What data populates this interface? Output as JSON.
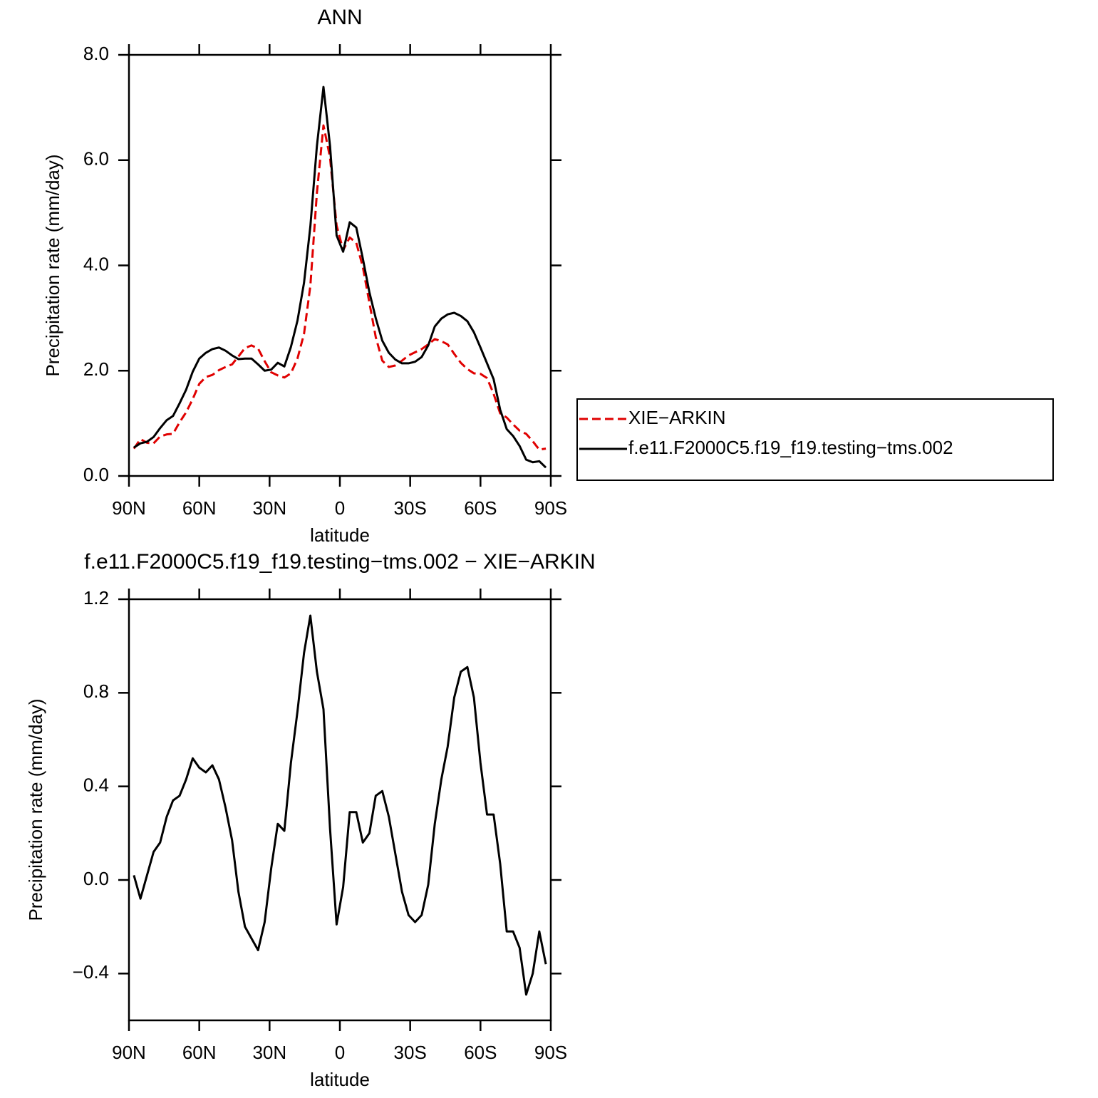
{
  "chart_data": [
    {
      "type": "line",
      "title": "ANN",
      "xlabel": "latitude",
      "ylabel": "Precipitation rate (mm/day)",
      "x": [
        87.9,
        85.1,
        82.3,
        79.5,
        76.7,
        73.9,
        71.2,
        68.4,
        65.6,
        62.8,
        60.0,
        57.2,
        54.4,
        51.6,
        48.8,
        46.0,
        43.3,
        40.5,
        37.7,
        34.9,
        32.1,
        29.3,
        26.5,
        23.7,
        20.9,
        18.1,
        15.3,
        12.6,
        9.8,
        7.0,
        4.2,
        1.4,
        -1.4,
        -4.2,
        -7.0,
        -9.8,
        -12.6,
        -15.3,
        -18.1,
        -20.9,
        -23.7,
        -26.5,
        -29.3,
        -32.1,
        -34.9,
        -37.7,
        -40.5,
        -43.3,
        -46.0,
        -48.8,
        -51.6,
        -54.4,
        -57.2,
        -60.0,
        -62.8,
        -65.6,
        -68.4,
        -71.2,
        -73.9,
        -76.7,
        -79.5,
        -82.3,
        -85.1,
        -87.9
      ],
      "xlim": [
        90,
        -90
      ],
      "xticks": [
        {
          "value": 90,
          "label": "90N"
        },
        {
          "value": 60,
          "label": "60N"
        },
        {
          "value": 30,
          "label": "30N"
        },
        0,
        {
          "value": -30,
          "label": "30S"
        },
        {
          "value": -60,
          "label": "60S"
        },
        {
          "value": -90,
          "label": "90S"
        }
      ],
      "ylim": [
        0,
        8
      ],
      "yticks": [
        {
          "value": 0,
          "label": "0.0"
        },
        {
          "value": 2,
          "label": "2.0"
        },
        {
          "value": 4,
          "label": "4.0"
        },
        {
          "value": 6,
          "label": "6.0"
        },
        {
          "value": 8,
          "label": "8.0"
        }
      ],
      "legend": "right",
      "series": [
        {
          "name": "XIE−ARKIN",
          "color": "#e00000",
          "dashed": true,
          "values": [
            0.52,
            0.7,
            0.63,
            0.62,
            0.75,
            0.79,
            0.8,
            1.02,
            1.21,
            1.46,
            1.75,
            1.88,
            1.92,
            2.01,
            2.07,
            2.12,
            2.27,
            2.43,
            2.48,
            2.42,
            2.18,
            1.97,
            1.91,
            1.87,
            1.95,
            2.23,
            2.7,
            3.61,
            5.38,
            6.66,
            6.05,
            4.76,
            4.29,
            4.53,
            4.43,
            3.97,
            3.29,
            2.64,
            2.19,
            2.07,
            2.1,
            2.19,
            2.29,
            2.35,
            2.41,
            2.5,
            2.6,
            2.56,
            2.5,
            2.32,
            2.15,
            2.03,
            1.95,
            1.94,
            1.86,
            1.56,
            1.19,
            1.11,
            0.98,
            0.86,
            0.8,
            0.66,
            0.5,
            0.52
          ]
        },
        {
          "name": "f.e11.F2000C5.f19_f19.testing−tms.002",
          "color": "#000000",
          "dashed": false,
          "values": [
            0.54,
            0.62,
            0.65,
            0.74,
            0.91,
            1.06,
            1.14,
            1.38,
            1.64,
            1.98,
            2.23,
            2.34,
            2.41,
            2.44,
            2.38,
            2.29,
            2.22,
            2.23,
            2.23,
            2.12,
            2.0,
            2.02,
            2.15,
            2.08,
            2.45,
            2.95,
            3.67,
            4.74,
            6.27,
            7.39,
            6.27,
            4.57,
            4.26,
            4.82,
            4.72,
            4.13,
            3.49,
            3.0,
            2.57,
            2.34,
            2.21,
            2.14,
            2.14,
            2.17,
            2.26,
            2.48,
            2.84,
            2.99,
            3.07,
            3.1,
            3.04,
            2.94,
            2.73,
            2.44,
            2.14,
            1.84,
            1.26,
            0.89,
            0.76,
            0.57,
            0.31,
            0.26,
            0.28,
            0.16
          ]
        }
      ]
    },
    {
      "type": "line",
      "title": "f.e11.F2000C5.f19_f19.testing−tms.002 − XIE−ARKIN",
      "xlabel": "latitude",
      "ylabel": "Precipitation rate (mm/day)",
      "x": [
        87.9,
        85.1,
        82.3,
        79.5,
        76.7,
        73.9,
        71.2,
        68.4,
        65.6,
        62.8,
        60.0,
        57.2,
        54.4,
        51.6,
        48.8,
        46.0,
        43.3,
        40.5,
        37.7,
        34.9,
        32.1,
        29.3,
        26.5,
        23.7,
        20.9,
        18.1,
        15.3,
        12.6,
        9.8,
        7.0,
        4.2,
        1.4,
        -1.4,
        -4.2,
        -7.0,
        -9.8,
        -12.6,
        -15.3,
        -18.1,
        -20.9,
        -23.7,
        -26.5,
        -29.3,
        -32.1,
        -34.9,
        -37.7,
        -40.5,
        -43.3,
        -46.0,
        -48.8,
        -51.6,
        -54.4,
        -57.2,
        -60.0,
        -62.8,
        -65.6,
        -68.4,
        -71.2,
        -73.9,
        -76.7,
        -79.5,
        -82.3,
        -85.1,
        -87.9
      ],
      "xlim": [
        90,
        -90
      ],
      "xticks": [
        {
          "value": 90,
          "label": "90N"
        },
        {
          "value": 60,
          "label": "60N"
        },
        {
          "value": 30,
          "label": "30N"
        },
        0,
        {
          "value": -30,
          "label": "30S"
        },
        {
          "value": -60,
          "label": "60S"
        },
        {
          "value": -90,
          "label": "90S"
        }
      ],
      "ylim": [
        -0.6,
        1.2
      ],
      "yticks": [
        {
          "value": -0.4,
          "label": "−0.4"
        },
        {
          "value": 0,
          "label": "0.0"
        },
        0.4,
        0.8,
        1.2
      ],
      "series": [
        {
          "color": "#000000",
          "dashed": false,
          "values": [
            0.02,
            -0.08,
            0.02,
            0.12,
            0.16,
            0.27,
            0.34,
            0.36,
            0.43,
            0.52,
            0.48,
            0.46,
            0.49,
            0.43,
            0.31,
            0.17,
            -0.05,
            -0.2,
            -0.25,
            -0.3,
            -0.18,
            0.05,
            0.24,
            0.21,
            0.5,
            0.72,
            0.97,
            1.13,
            0.89,
            0.73,
            0.22,
            -0.19,
            -0.03,
            0.29,
            0.29,
            0.16,
            0.2,
            0.36,
            0.38,
            0.27,
            0.11,
            -0.05,
            -0.15,
            -0.18,
            -0.15,
            -0.02,
            0.24,
            0.43,
            0.57,
            0.78,
            0.89,
            0.91,
            0.78,
            0.5,
            0.28,
            0.28,
            0.07,
            -0.22,
            -0.22,
            -0.29,
            -0.49,
            -0.4,
            -0.22,
            -0.36
          ]
        }
      ]
    }
  ]
}
